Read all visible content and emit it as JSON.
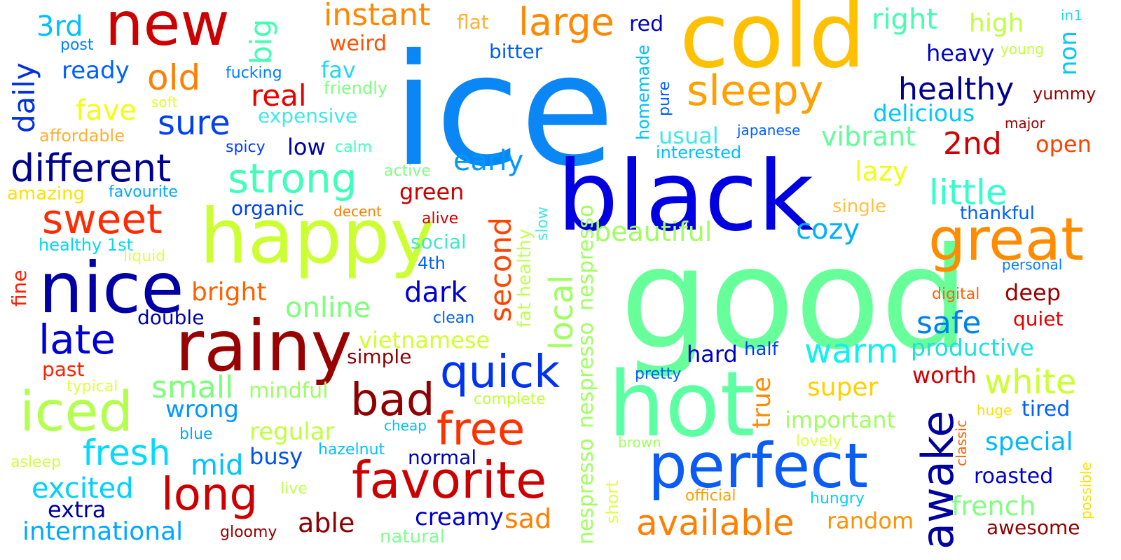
{
  "words": [
    {
      "text": "ice",
      "color": "#0a86f5"
    },
    {
      "text": "good",
      "color": "#66ff99"
    },
    {
      "text": "black",
      "color": "#0000e0"
    },
    {
      "text": "cold",
      "color": "#ffc000"
    },
    {
      "text": "hot",
      "color": "#5cffa2"
    },
    {
      "text": "happy",
      "color": "#ccff33"
    },
    {
      "text": "new",
      "color": "#cc0000"
    },
    {
      "text": "rainy",
      "color": "#990000"
    },
    {
      "text": "nice",
      "color": "#0000a6"
    },
    {
      "text": "perfect",
      "color": "#0a5cf5"
    },
    {
      "text": "great",
      "color": "#ff8c00"
    },
    {
      "text": "favorite",
      "color": "#cc0000"
    },
    {
      "text": "iced",
      "color": "#b2ff4d"
    },
    {
      "text": "sleepy",
      "color": "#ffa000"
    },
    {
      "text": "awake",
      "color": "#0000a0"
    },
    {
      "text": "quick",
      "color": "#0033f0"
    },
    {
      "text": "different",
      "color": "#00008f"
    },
    {
      "text": "sweet",
      "color": "#ff2a00"
    },
    {
      "text": "long",
      "color": "#cc0000"
    },
    {
      "text": "available",
      "color": "#ff8000"
    },
    {
      "text": "late",
      "color": "#0000d6"
    },
    {
      "text": "strong",
      "color": "#40ffbb"
    },
    {
      "text": "bad",
      "color": "#8f0000"
    },
    {
      "text": "free",
      "color": "#ff3300"
    },
    {
      "text": "large",
      "color": "#ff8800"
    },
    {
      "text": "little",
      "color": "#33ffcc"
    },
    {
      "text": "warm",
      "color": "#10f0f0"
    },
    {
      "text": "old",
      "color": "#ff8000"
    },
    {
      "text": "instant",
      "color": "#ff8800"
    },
    {
      "text": "healthy",
      "color": "#000090"
    },
    {
      "text": "white",
      "color": "#ccff33"
    },
    {
      "text": "fresh",
      "color": "#00dcff"
    },
    {
      "text": "sure",
      "color": "#0040f0"
    },
    {
      "text": "local",
      "color": "#a0ff60"
    },
    {
      "text": "second",
      "color": "#ff4400"
    },
    {
      "text": "big",
      "color": "#40ffb0"
    },
    {
      "text": "daily",
      "color": "#0030e0"
    },
    {
      "text": "real",
      "color": "#e80000"
    },
    {
      "text": "cozy",
      "color": "#00b0ff"
    },
    {
      "text": "safe",
      "color": "#0080f0"
    },
    {
      "text": "right",
      "color": "#40ffb0"
    },
    {
      "text": "fave",
      "color": "#f2ff10"
    },
    {
      "text": "2nd",
      "color": "#cc0000"
    },
    {
      "text": "small",
      "color": "#7cff7c"
    },
    {
      "text": "online",
      "color": "#7cff7c"
    },
    {
      "text": "mid",
      "color": "#00c4ff"
    },
    {
      "text": "dark",
      "color": "#0000d0"
    },
    {
      "text": "early",
      "color": "#0098ff"
    },
    {
      "text": "excited",
      "color": "#00d0ff"
    },
    {
      "text": "special",
      "color": "#00b8ff"
    },
    {
      "text": "beautiful",
      "color": "#a0ff60"
    },
    {
      "text": "vibrant",
      "color": "#60ff9c"
    },
    {
      "text": "lazy",
      "color": "#f0ff10"
    },
    {
      "text": "french",
      "color": "#80ff80"
    },
    {
      "text": "productive",
      "color": "#20e0e0"
    },
    {
      "text": "non",
      "color": "#00c8ff"
    },
    {
      "text": "delicious",
      "color": "#00c8ff"
    },
    {
      "text": "bright",
      "color": "#ff6000"
    },
    {
      "text": "3rd",
      "color": "#00c0ff"
    },
    {
      "text": "ready",
      "color": "#0060ff"
    },
    {
      "text": "high",
      "color": "#c0ff40"
    },
    {
      "text": "heavy",
      "color": "#0000c8"
    },
    {
      "text": "nespresso",
      "color": "#a0ff60"
    },
    {
      "text": "nespresso",
      "color": "#a0ff60"
    },
    {
      "text": "nespresso",
      "color": "#a0ff60"
    },
    {
      "text": "super",
      "color": "#ffd000"
    },
    {
      "text": "important",
      "color": "#a0ff60"
    },
    {
      "text": "international",
      "color": "#00a8ff"
    },
    {
      "text": "regular",
      "color": "#c0ff40"
    },
    {
      "text": "sad",
      "color": "#ff8000"
    },
    {
      "text": "able",
      "color": "#8f0000"
    },
    {
      "text": "creamy",
      "color": "#0000d0"
    },
    {
      "text": "wrong",
      "color": "#0098ff"
    },
    {
      "text": "hard",
      "color": "#0000c0"
    },
    {
      "text": "true",
      "color": "#ff8c00"
    },
    {
      "text": "worth",
      "color": "#cc0000"
    },
    {
      "text": "extra",
      "color": "#0000a0"
    },
    {
      "text": "random",
      "color": "#ff9000"
    },
    {
      "text": "awesome",
      "color": "#8f0000"
    },
    {
      "text": "roasted",
      "color": "#0000d0"
    },
    {
      "text": "tired",
      "color": "#0060ff"
    },
    {
      "text": "open",
      "color": "#ff4000"
    },
    {
      "text": "deep",
      "color": "#990000"
    },
    {
      "text": "quiet",
      "color": "#e00000"
    },
    {
      "text": "usual",
      "color": "#40e8e8"
    },
    {
      "text": "vietnamese",
      "color": "#d0ff30"
    },
    {
      "text": "mindful",
      "color": "#9cff60"
    },
    {
      "text": "simple",
      "color": "#8f0000"
    },
    {
      "text": "green",
      "color": "#cc0000"
    },
    {
      "text": "organic",
      "color": "#0040e0"
    },
    {
      "text": "expensive",
      "color": "#40e8e8"
    },
    {
      "text": "weird",
      "color": "#ff5000"
    },
    {
      "text": "flat",
      "color": "#ffb030"
    },
    {
      "text": "bitter",
      "color": "#0060f0"
    },
    {
      "text": "red",
      "color": "#0000c0"
    },
    {
      "text": "fav",
      "color": "#20d8f0"
    },
    {
      "text": "low",
      "color": "#0000a0"
    },
    {
      "text": "amazing",
      "color": "#ffe000"
    },
    {
      "text": "affordable",
      "color": "#ffb030"
    },
    {
      "text": "busy",
      "color": "#0050f0"
    },
    {
      "text": "normal",
      "color": "#0000b0"
    },
    {
      "text": "double",
      "color": "#0000b0"
    },
    {
      "text": "fine",
      "color": "#ff2000"
    },
    {
      "text": "past",
      "color": "#ff2000"
    },
    {
      "text": "social",
      "color": "#40e8c8"
    },
    {
      "text": "friendly",
      "color": "#80ff80"
    },
    {
      "text": "fucking",
      "color": "#0080ff"
    },
    {
      "text": "post",
      "color": "#0080ff"
    },
    {
      "text": "soft",
      "color": "#e0ff20"
    },
    {
      "text": "spicy",
      "color": "#0040ff"
    },
    {
      "text": "calm",
      "color": "#40ffc0"
    },
    {
      "text": "active",
      "color": "#80ff80"
    },
    {
      "text": "favourite",
      "color": "#00a8ff"
    },
    {
      "text": "healthy 1st",
      "color": "#00d8f0"
    },
    {
      "text": "liquid",
      "color": "#e0ff40"
    },
    {
      "text": "decent",
      "color": "#ff8000"
    },
    {
      "text": "alive",
      "color": "#cc0000"
    },
    {
      "text": "4th",
      "color": "#0060ff"
    },
    {
      "text": "clean",
      "color": "#0060f0"
    },
    {
      "text": "typical",
      "color": "#e0ff40"
    },
    {
      "text": "asleep",
      "color": "#d0ff40"
    },
    {
      "text": "blue",
      "color": "#00a8ff"
    },
    {
      "text": "live",
      "color": "#c0ff50"
    },
    {
      "text": "gloomy",
      "color": "#990000"
    },
    {
      "text": "natural",
      "color": "#80ff90"
    },
    {
      "text": "cheap",
      "color": "#00c0ff"
    },
    {
      "text": "hazelnut",
      "color": "#00c0ff"
    },
    {
      "text": "complete",
      "color": "#c0ff40"
    },
    {
      "text": "pretty",
      "color": "#0060ff"
    },
    {
      "text": "half",
      "color": "#0040f0"
    },
    {
      "text": "brown",
      "color": "#a0ff60"
    },
    {
      "text": "lovely",
      "color": "#e0ff40"
    },
    {
      "text": "official",
      "color": "#ffa000"
    },
    {
      "text": "hungry",
      "color": "#00d0ff"
    },
    {
      "text": "huge",
      "color": "#ffe000"
    },
    {
      "text": "personal",
      "color": "#0080ff"
    },
    {
      "text": "digital",
      "color": "#ff6000"
    },
    {
      "text": "thankful",
      "color": "#0060ff"
    },
    {
      "text": "single",
      "color": "#ffc040"
    },
    {
      "text": "japanese",
      "color": "#0060ff"
    },
    {
      "text": "interested",
      "color": "#00c0ff"
    },
    {
      "text": "major",
      "color": "#990000"
    },
    {
      "text": "yummy",
      "color": "#990000"
    },
    {
      "text": "young",
      "color": "#c0ff40"
    },
    {
      "text": "in1",
      "color": "#20d8f0"
    },
    {
      "text": "fat healthy",
      "color": "#c0ff50"
    },
    {
      "text": "slow",
      "color": "#40e8e8"
    },
    {
      "text": "homemade",
      "color": "#00c0ff"
    },
    {
      "text": "pure",
      "color": "#0060ff"
    },
    {
      "text": "short",
      "color": "#e0ff40"
    },
    {
      "text": "classic",
      "color": "#ff6000"
    },
    {
      "text": "possible",
      "color": "#ffe000"
    }
  ]
}
